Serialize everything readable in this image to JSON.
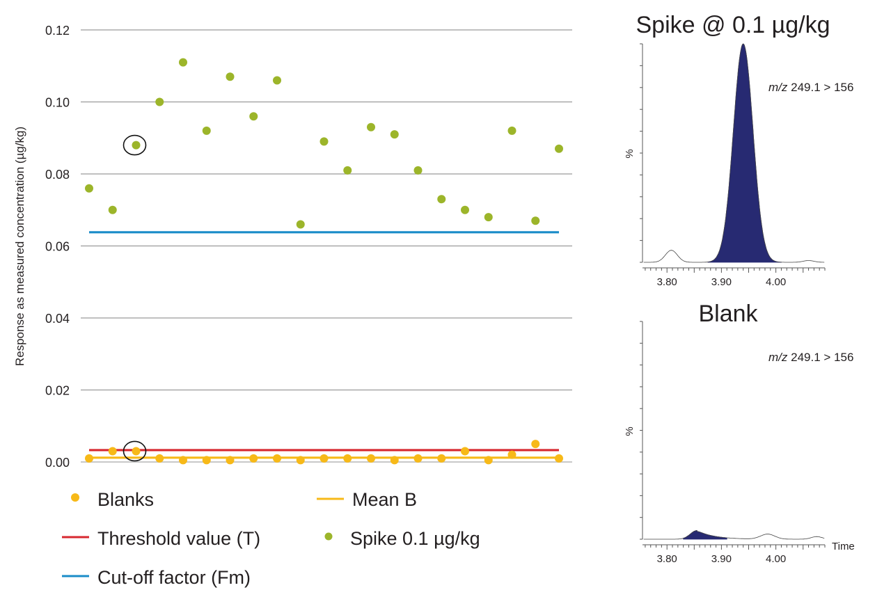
{
  "chart_data": [
    {
      "type": "scatter",
      "id": "main-scatter",
      "title": "",
      "xlabel": "",
      "ylabel": "Response as measured concentration (µg/kg)",
      "ylim": [
        0,
        0.12
      ],
      "yticks": [
        0.0,
        0.02,
        0.04,
        0.06,
        0.08,
        0.1,
        0.12
      ],
      "ytick_labels": [
        "0.00",
        "0.02",
        "0.04",
        "0.06",
        "0.08",
        "0.10",
        "0.12"
      ],
      "grid": true,
      "x": [
        1,
        2,
        3,
        4,
        5,
        6,
        7,
        8,
        9,
        10,
        11,
        12,
        13,
        14,
        15,
        16,
        17,
        18,
        19,
        20,
        21
      ],
      "series": [
        {
          "name": "Spike 0.1 µg/kg",
          "kind": "points",
          "color": "#9cb52a",
          "values": [
            0.076,
            0.07,
            0.088,
            0.1,
            0.111,
            0.092,
            0.107,
            0.096,
            0.106,
            0.066,
            0.089,
            0.081,
            0.093,
            0.091,
            0.081,
            0.073,
            0.07,
            0.068,
            0.092,
            0.067,
            0.087
          ],
          "highlighted_index": 2
        },
        {
          "name": "Blanks",
          "kind": "points",
          "color": "#f7b918",
          "values": [
            0.001,
            0.003,
            0.003,
            0.001,
            0.0005,
            0.0005,
            0.0005,
            0.001,
            0.001,
            0.0005,
            0.001,
            0.001,
            0.001,
            0.0005,
            0.001,
            0.001,
            0.003,
            0.0005,
            0.002,
            0.005,
            0.001
          ],
          "highlighted_index": 2
        },
        {
          "name": "Cut-off factor (Fm)",
          "kind": "hline",
          "color": "#1a8cc8",
          "value": 0.0638
        },
        {
          "name": "Threshold value (T)",
          "kind": "hline",
          "color": "#d7282f",
          "value": 0.0033
        },
        {
          "name": "Mean B",
          "kind": "hline",
          "color": "#f7b918",
          "value": 0.0012
        }
      ],
      "legend": {
        "placement": "bottom",
        "entries": [
          {
            "label": "Blanks",
            "marker": "dot",
            "color": "#f7b918"
          },
          {
            "label": "Mean B",
            "marker": "line",
            "color": "#f7b918"
          },
          {
            "label": "Threshold value (T)",
            "marker": "line",
            "color": "#d7282f"
          },
          {
            "label": "Spike 0.1 µg/kg",
            "marker": "dot",
            "color": "#9cb52a"
          },
          {
            "label": "Cut-off factor (Fm)",
            "marker": "line",
            "color": "#1a8cc8"
          }
        ]
      }
    },
    {
      "type": "area",
      "id": "chromatogram-spike",
      "title": "Spike @ 0.1 µg/kg",
      "annotation_prefix": "m/z",
      "annotation_text": " 249.1 > 156",
      "ylabel": "%",
      "xlabel": "",
      "xlim": [
        3.755,
        4.09
      ],
      "ylim": [
        0,
        100
      ],
      "xtick_labels": [
        "3.80",
        "3.90",
        "4.00"
      ],
      "xticks": [
        3.8,
        3.9,
        4.0
      ],
      "fill_color": "#272a72",
      "peak": {
        "rt": 3.94,
        "height": 100,
        "sigma": 0.018,
        "integrated_from": 3.875,
        "integrated_to": 4.01
      },
      "baseline_features": [
        {
          "rt": 3.808,
          "height": 5.5,
          "sigma": 0.011
        },
        {
          "rt": 4.06,
          "height": 0.8,
          "sigma": 0.01
        }
      ]
    },
    {
      "type": "area",
      "id": "chromatogram-blank",
      "title": "Blank",
      "annotation_prefix": "m/z",
      "annotation_text": " 249.1 > 156",
      "ylabel": "%",
      "xlabel": "Time",
      "xlim": [
        3.755,
        4.09
      ],
      "ylim": [
        0,
        100
      ],
      "xtick_labels": [
        "3.80",
        "3.90",
        "4.00"
      ],
      "xticks": [
        3.8,
        3.9,
        4.0
      ],
      "fill_color": "#272a72",
      "peak": {
        "rt": 3.855,
        "height": 4,
        "sigma": 0.012,
        "tail": 0.03,
        "integrated_from": 3.83,
        "integrated_to": 3.91
      },
      "baseline_features": [
        {
          "rt": 3.985,
          "height": 2.3,
          "sigma": 0.013
        },
        {
          "rt": 4.075,
          "height": 1.2,
          "sigma": 0.01
        }
      ]
    }
  ]
}
